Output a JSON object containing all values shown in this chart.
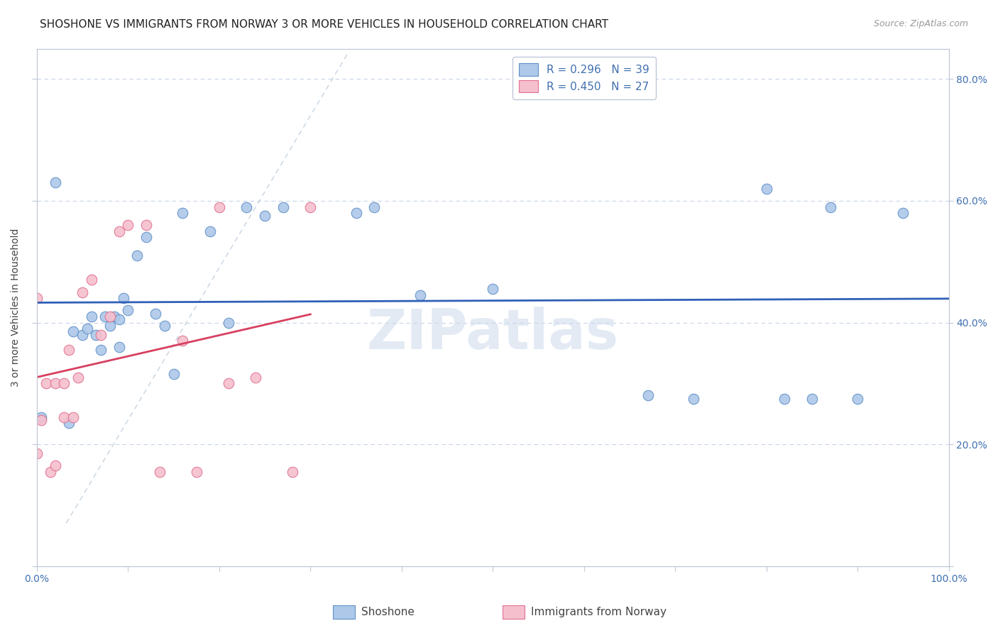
{
  "title": "SHOSHONE VS IMMIGRANTS FROM NORWAY 3 OR MORE VEHICLES IN HOUSEHOLD CORRELATION CHART",
  "source": "Source: ZipAtlas.com",
  "ylabel": "3 or more Vehicles in Household",
  "xlim": [
    0.0,
    1.0
  ],
  "ylim": [
    0.0,
    0.85
  ],
  "xticks": [
    0.0,
    0.1,
    0.2,
    0.3,
    0.4,
    0.5,
    0.6,
    0.7,
    0.8,
    0.9,
    1.0
  ],
  "xticklabels": [
    "0.0%",
    "",
    "",
    "",
    "",
    "",
    "",
    "",
    "",
    "",
    "100.0%"
  ],
  "yticks": [
    0.0,
    0.2,
    0.4,
    0.6,
    0.8
  ],
  "yticklabels_right": [
    "",
    "20.0%",
    "40.0%",
    "60.0%",
    "80.0%"
  ],
  "legend_label_blue": "R = 0.296   N = 39",
  "legend_label_pink": "R = 0.450   N = 27",
  "blue_scatter_color": "#adc8e8",
  "pink_scatter_color": "#f5bfce",
  "blue_edge_color": "#6090c8",
  "pink_edge_color": "#e07090",
  "blue_line_color": "#3060b8",
  "pink_line_color": "#d84060",
  "watermark": "ZIPatlas",
  "shoshone_x": [
    0.005,
    0.02,
    0.035,
    0.04,
    0.05,
    0.055,
    0.06,
    0.065,
    0.07,
    0.075,
    0.08,
    0.085,
    0.09,
    0.09,
    0.095,
    0.1,
    0.11,
    0.12,
    0.13,
    0.14,
    0.15,
    0.16,
    0.19,
    0.21,
    0.23,
    0.25,
    0.27,
    0.35,
    0.37,
    0.42,
    0.5,
    0.67,
    0.72,
    0.8,
    0.82,
    0.85,
    0.87,
    0.9,
    0.95
  ],
  "shoshone_y": [
    0.245,
    0.63,
    0.235,
    0.385,
    0.38,
    0.39,
    0.41,
    0.38,
    0.355,
    0.41,
    0.395,
    0.41,
    0.36,
    0.405,
    0.44,
    0.42,
    0.51,
    0.54,
    0.415,
    0.395,
    0.315,
    0.58,
    0.55,
    0.4,
    0.59,
    0.575,
    0.59,
    0.58,
    0.59,
    0.445,
    0.455,
    0.28,
    0.275,
    0.62,
    0.275,
    0.275,
    0.59,
    0.275,
    0.58
  ],
  "norway_x": [
    0.0,
    0.0,
    0.005,
    0.01,
    0.015,
    0.02,
    0.02,
    0.03,
    0.03,
    0.035,
    0.04,
    0.045,
    0.05,
    0.06,
    0.07,
    0.08,
    0.09,
    0.1,
    0.12,
    0.135,
    0.16,
    0.175,
    0.2,
    0.21,
    0.24,
    0.28,
    0.3
  ],
  "norway_y": [
    0.185,
    0.44,
    0.24,
    0.3,
    0.155,
    0.165,
    0.3,
    0.245,
    0.3,
    0.355,
    0.245,
    0.31,
    0.45,
    0.47,
    0.38,
    0.41,
    0.55,
    0.56,
    0.56,
    0.155,
    0.37,
    0.155,
    0.59,
    0.3,
    0.31,
    0.155,
    0.59
  ],
  "background_color": "#ffffff",
  "grid_color": "#c8d4e8",
  "title_fontsize": 11,
  "axis_label_fontsize": 10,
  "tick_fontsize": 10,
  "legend_fontsize": 11
}
